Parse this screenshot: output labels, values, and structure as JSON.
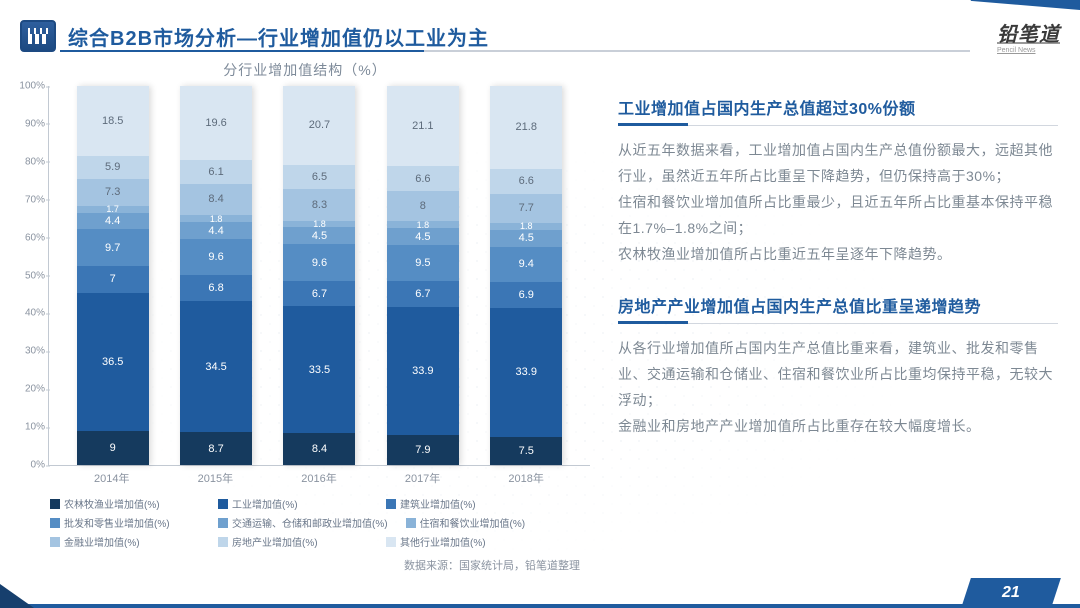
{
  "header": {
    "title": "综合B2B市场分析—行业增加值仍以工业为主",
    "brand": "铅笔道",
    "brand_sub": "Pencil News"
  },
  "chart": {
    "type": "stacked_bar_100",
    "title": "分行业增加值结构（%）",
    "ylim": [
      0,
      100
    ],
    "ytick_step": 10,
    "ytick_suffix": "%",
    "categories": [
      "2014年",
      "2015年",
      "2016年",
      "2017年",
      "2018年"
    ],
    "series": [
      {
        "name": "农林牧渔业增加值(%)",
        "color": "#153a5e"
      },
      {
        "name": "工业增加值(%)",
        "color": "#1f5b9e"
      },
      {
        "name": "建筑业增加值(%)",
        "color": "#3b76b5"
      },
      {
        "name": "批发和零售业增加值(%)",
        "color": "#558dc4"
      },
      {
        "name": "交通运输、仓储和邮政业增加值(%)",
        "color": "#6fa0ce"
      },
      {
        "name": "住宿和餐饮业增加值(%)",
        "color": "#8ab3d8"
      },
      {
        "name": "金融业增加值(%)",
        "color": "#a4c4e1"
      },
      {
        "name": "房地产业增加值(%)",
        "color": "#bfd6ea"
      },
      {
        "name": "其他行业增加值(%)",
        "color": "#d9e6f2"
      }
    ],
    "values": [
      [
        9,
        36.5,
        7,
        9.7,
        4.4,
        1.7,
        7.3,
        5.9,
        18.5
      ],
      [
        8.7,
        34.5,
        6.8,
        9.6,
        4.4,
        1.8,
        8.4,
        6.1,
        19.6
      ],
      [
        8.4,
        33.5,
        6.7,
        9.6,
        4.5,
        1.8,
        8.3,
        6.5,
        20.7
      ],
      [
        7.9,
        33.9,
        6.7,
        9.5,
        4.5,
        1.8,
        8,
        6.6,
        21.1
      ],
      [
        7.5,
        33.9,
        6.9,
        9.4,
        4.5,
        1.8,
        7.7,
        6.6,
        21.8
      ]
    ],
    "axis_color": "#c2c9d2",
    "tick_label_color": "#8a93a0",
    "tick_label_fontsize": 10,
    "seg_label_fontsize": 11,
    "seg_label_small_threshold": 2.5,
    "background_color": "#ffffff"
  },
  "source": "数据来源：国家统计局，铅笔道整理",
  "sections": [
    {
      "title": "工业增加值占国内生产总值超过30%份额",
      "body": "从近五年数据来看，工业增加值占国内生产总值份额最大，远超其他行业，虽然近五年所占比重呈下降趋势，但仍保持高于30%；\n住宿和餐饮业增加值所占比重最少，且近五年所占比重基本保持平稳在1.7%–1.8%之间；\n农林牧渔业增加值所占比重近五年呈逐年下降趋势。"
    },
    {
      "title": "房地产产业增加值占国内生产总值比重呈递增趋势",
      "body": "从各行业增加值所占国内生产总值比重来看，建筑业、批发和零售业、交通运输和仓储业、住宿和餐饮业所占比重均保持平稳，无较大浮动；\n金融业和房地产产业增加值所占比重存在较大幅度增长。"
    }
  ],
  "page_number": "21",
  "accent_color": "#1f5b9e"
}
